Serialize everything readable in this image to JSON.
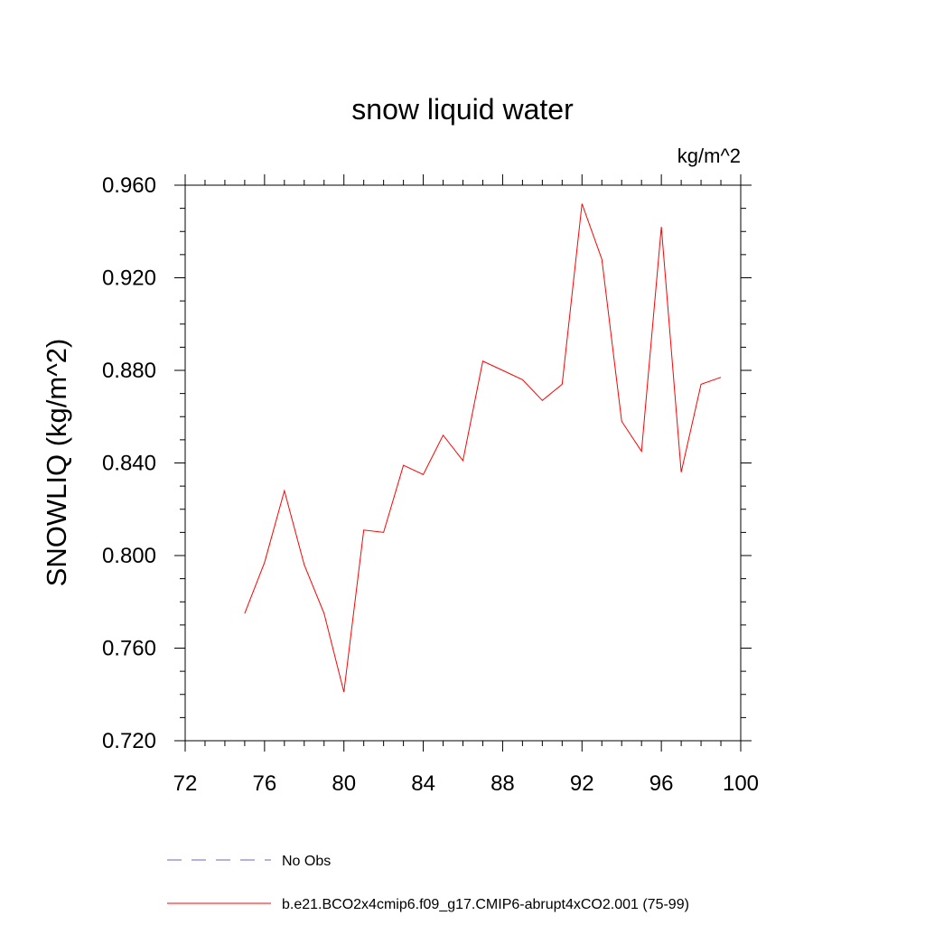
{
  "chart_data": {
    "type": "line",
    "title": "snow liquid water",
    "units_label": "kg/m^2",
    "ylabel": "SNOWLIQ  (kg/m^2)",
    "xlabel": "",
    "xlim": [
      72,
      100
    ],
    "ylim": [
      0.72,
      0.96
    ],
    "x_ticks": [
      72,
      76,
      80,
      84,
      88,
      92,
      96,
      100
    ],
    "x_tick_labels": [
      "72",
      "76",
      "80",
      "84",
      "88",
      "92",
      "96",
      "100"
    ],
    "y_ticks": [
      0.72,
      0.76,
      0.8,
      0.84,
      0.88,
      0.92,
      0.96
    ],
    "y_tick_labels": [
      "0.720",
      "0.760",
      "0.800",
      "0.840",
      "0.880",
      "0.920",
      "0.960"
    ],
    "grid": false,
    "legend_position": "bottom-left",
    "legend": [
      {
        "name": "No Obs",
        "color": "#6666cc",
        "style": "dashed"
      },
      {
        "name": "b.e21.BCO2x4cmip6.f09_g17.CMIP6-abrupt4xCO2.001 (75-99)",
        "color": "#ff0000",
        "style": "solid"
      }
    ],
    "series": [
      {
        "name": "b.e21.BCO2x4cmip6.f09_g17.CMIP6-abrupt4xCO2.001 (75-99)",
        "color": "#ff0000",
        "x": [
          75,
          76,
          77,
          78,
          79,
          80,
          81,
          82,
          83,
          84,
          85,
          86,
          87,
          88,
          89,
          90,
          91,
          92,
          93,
          94,
          95,
          96,
          97,
          98,
          99
        ],
        "values": [
          0.775,
          0.797,
          0.828,
          0.796,
          0.775,
          0.741,
          0.811,
          0.81,
          0.839,
          0.835,
          0.852,
          0.841,
          0.884,
          0.88,
          0.876,
          0.867,
          0.874,
          0.952,
          0.928,
          0.858,
          0.845,
          0.942,
          0.836,
          0.874,
          0.877
        ]
      }
    ]
  }
}
